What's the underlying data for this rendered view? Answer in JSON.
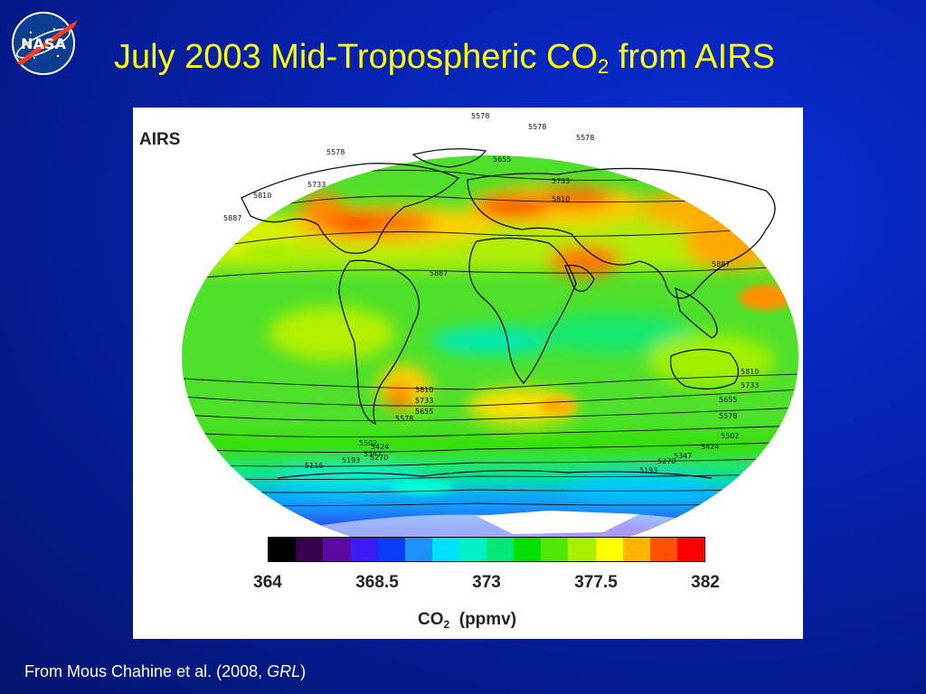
{
  "slide": {
    "background_color": "#0622b0",
    "title_color": "#ffff00",
    "logo_text": "NASA",
    "title_main": "July 2003 Mid-Tropospheric CO",
    "title_sub": "2",
    "title_suffix": " from AIRS"
  },
  "figure": {
    "label": "AIRS",
    "contour_labels": [
      "5578",
      "5578",
      "5578",
      "5733",
      "5810",
      "5887",
      "5810",
      "5733",
      "5655",
      "5578",
      "5887",
      "5887",
      "5810",
      "5733",
      "5655",
      "5578",
      "5502",
      "5424",
      "5347",
      "5270",
      "5193",
      "5116",
      "5810",
      "5733",
      "5655",
      "5578",
      "5502",
      "5424",
      "5347",
      "5270",
      "5193"
    ],
    "colorbar": {
      "colors": [
        "#000000",
        "#3a0050",
        "#5a0aa0",
        "#3a1af0",
        "#0a3cf5",
        "#1e90ff",
        "#00e0ff",
        "#00f0c8",
        "#00e878",
        "#00e000",
        "#50e800",
        "#a8f000",
        "#ffff00",
        "#ffb400",
        "#ff5000",
        "#ff0000"
      ],
      "tick_labels": [
        "364",
        "368.5",
        "373",
        "377.5",
        "382"
      ],
      "unit_main": "CO",
      "unit_sub": "2",
      "unit_suffix": "  (ppmv)"
    }
  },
  "caption": {
    "text": "From Mous Chahine et al. (2008, ",
    "journal": "GRL",
    "close": ")"
  }
}
